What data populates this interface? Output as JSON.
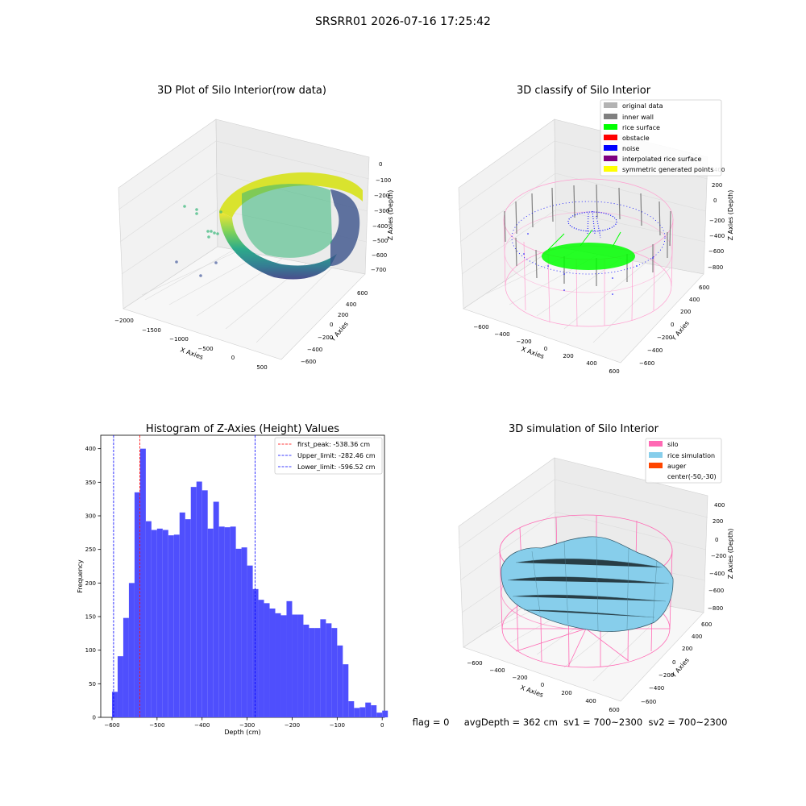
{
  "figure": {
    "suptitle": "SRSRR01 2026-07-16 17:25:42",
    "status_line": "flag = 0     avgDepth = 362 cm  sv1 = 700~2300  sv2 = 700~2300"
  },
  "chart_data": [
    {
      "type": "scatter",
      "subtype": "3d",
      "title": "3D Plot of Silo Interior(row data)",
      "xlabel": "X Axies",
      "ylabel": "Y Axies",
      "zlabel": "Z Axies (Depth)",
      "x_ticks": [
        "−2000",
        "−1500",
        "−1000",
        "−500",
        "0",
        "500"
      ],
      "y_ticks": [
        "−600",
        "−400",
        "−200",
        "0",
        "200",
        "400",
        "600"
      ],
      "z_ticks": [
        "0",
        "−100",
        "−200",
        "−300",
        "−400",
        "−500",
        "−600",
        "−700"
      ],
      "colormap": "viridis"
    },
    {
      "type": "scatter",
      "subtype": "3d",
      "title": "3D classify of Silo Interior",
      "xlabel": "X Axies",
      "ylabel": "Y Axies",
      "zlabel": "Z Axies (Depth)",
      "x_ticks": [
        "−600",
        "−400",
        "−200",
        "0",
        "200",
        "400",
        "600"
      ],
      "y_ticks": [
        "−600",
        "−400",
        "−200",
        "0",
        "200",
        "400",
        "600"
      ],
      "z_ticks": [
        "400",
        "200",
        "0",
        "−200",
        "−400",
        "−600",
        "−800"
      ],
      "legend_position": "upper-right",
      "series": [
        {
          "name": "original data",
          "color": "#b3b3b3"
        },
        {
          "name": "inner wall",
          "color": "#808080"
        },
        {
          "name": "rice surface",
          "color": "#00ff00"
        },
        {
          "name": "obstacle",
          "color": "#ff0000"
        },
        {
          "name": "noise",
          "color": "#0000ff"
        },
        {
          "name": "interpolated rice surface",
          "color": "#800080"
        },
        {
          "name": "symmetric generated points",
          "color": "#ffff00"
        }
      ]
    },
    {
      "type": "bar",
      "subtype": "histogram",
      "title": "Histogram of Z-Axies (Height) Values",
      "xlabel": "Depth (cm)",
      "ylabel": "Frequency",
      "xlim": [
        -625,
        5
      ],
      "ylim": [
        0,
        420
      ],
      "x_ticks": [
        -600,
        -500,
        -400,
        -300,
        -200,
        -100,
        0
      ],
      "x_tick_labels": [
        "−600",
        "−500",
        "−400",
        "−300",
        "−200",
        "−100",
        "0"
      ],
      "y_ticks": [
        0,
        50,
        100,
        150,
        200,
        250,
        300,
        350,
        400
      ],
      "bin_start": -600,
      "bin_width": 12.5,
      "bar_color": "#4f4ffd",
      "counts": [
        38,
        91,
        148,
        200,
        335,
        400,
        292,
        279,
        281,
        279,
        271,
        272,
        305,
        295,
        343,
        351,
        338,
        281,
        321,
        284,
        283,
        284,
        251,
        253,
        226,
        191,
        175,
        170,
        162,
        155,
        152,
        173,
        153,
        153,
        138,
        133,
        133,
        146,
        140,
        133,
        107,
        79,
        24,
        14,
        15,
        22,
        18,
        7,
        10
      ],
      "lines": [
        {
          "label": "first_peak: -538.36 cm",
          "x": -538.36,
          "color": "#ff0000"
        },
        {
          "label": "Upper_limit: -282.46 cm",
          "x": -282.46,
          "color": "#0000ff"
        },
        {
          "label": "Lower_limit: -596.52 cm",
          "x": -596.52,
          "color": "#0000ff"
        }
      ],
      "legend_position": "upper-right"
    },
    {
      "type": "area",
      "subtype": "3d-surface",
      "title": "3D simulation of Silo Interior",
      "xlabel": "X Axies",
      "ylabel": "Y Axies",
      "zlabel": "Z Axies (Depth)",
      "x_ticks": [
        "−600",
        "−400",
        "−200",
        "0",
        "200",
        "400",
        "600"
      ],
      "y_ticks": [
        "−600",
        "−400",
        "−200",
        "0",
        "200",
        "400",
        "600"
      ],
      "z_ticks": [
        "400",
        "200",
        "0",
        "−200",
        "−400",
        "−600",
        "−800"
      ],
      "legend_position": "upper-right",
      "series": [
        {
          "name": "silo",
          "color": "#ff69b4"
        },
        {
          "name": "rice simulation",
          "color": "#87ceeb"
        },
        {
          "name": "auger",
          "color": "#ff4500"
        },
        {
          "name": "center(-50,-30)",
          "color": "none"
        }
      ]
    }
  ]
}
